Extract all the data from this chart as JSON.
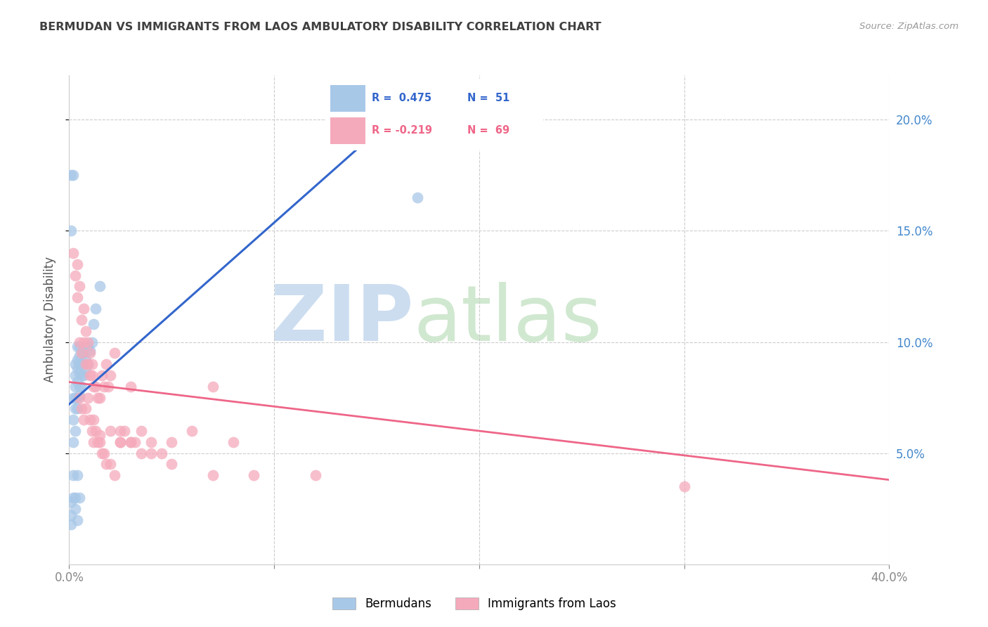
{
  "title": "BERMUDAN VS IMMIGRANTS FROM LAOS AMBULATORY DISABILITY CORRELATION CHART",
  "source": "Source: ZipAtlas.com",
  "ylabel": "Ambulatory Disability",
  "xlim": [
    0.0,
    0.4
  ],
  "ylim": [
    0.0,
    0.22
  ],
  "blue_R": 0.475,
  "blue_N": 51,
  "pink_R": -0.219,
  "pink_N": 69,
  "legend_label_blue": "Bermudans",
  "legend_label_pink": "Immigrants from Laos",
  "blue_scatter_x": [
    0.001,
    0.001,
    0.001,
    0.002,
    0.002,
    0.002,
    0.002,
    0.002,
    0.003,
    0.003,
    0.003,
    0.003,
    0.003,
    0.003,
    0.004,
    0.004,
    0.004,
    0.004,
    0.004,
    0.004,
    0.005,
    0.005,
    0.005,
    0.005,
    0.005,
    0.005,
    0.006,
    0.006,
    0.006,
    0.006,
    0.007,
    0.007,
    0.007,
    0.008,
    0.008,
    0.009,
    0.009,
    0.01,
    0.011,
    0.012,
    0.013,
    0.015,
    0.001,
    0.001,
    0.002,
    0.003,
    0.004,
    0.005,
    0.003,
    0.004,
    0.17
  ],
  "blue_scatter_y": [
    0.018,
    0.022,
    0.028,
    0.03,
    0.04,
    0.055,
    0.065,
    0.075,
    0.06,
    0.07,
    0.075,
    0.08,
    0.085,
    0.09,
    0.07,
    0.075,
    0.082,
    0.088,
    0.092,
    0.098,
    0.076,
    0.08,
    0.086,
    0.09,
    0.094,
    0.098,
    0.08,
    0.085,
    0.09,
    0.095,
    0.085,
    0.09,
    0.095,
    0.088,
    0.092,
    0.09,
    0.098,
    0.096,
    0.1,
    0.108,
    0.115,
    0.125,
    0.15,
    0.175,
    0.175,
    0.03,
    0.04,
    0.03,
    0.025,
    0.02,
    0.165
  ],
  "pink_scatter_x": [
    0.002,
    0.003,
    0.004,
    0.004,
    0.005,
    0.005,
    0.006,
    0.006,
    0.007,
    0.007,
    0.008,
    0.008,
    0.009,
    0.009,
    0.01,
    0.01,
    0.011,
    0.011,
    0.012,
    0.013,
    0.014,
    0.015,
    0.016,
    0.017,
    0.018,
    0.019,
    0.02,
    0.022,
    0.025,
    0.027,
    0.03,
    0.032,
    0.035,
    0.04,
    0.045,
    0.05,
    0.06,
    0.07,
    0.08,
    0.005,
    0.006,
    0.007,
    0.008,
    0.009,
    0.01,
    0.011,
    0.012,
    0.013,
    0.014,
    0.015,
    0.016,
    0.017,
    0.018,
    0.02,
    0.022,
    0.025,
    0.03,
    0.012,
    0.015,
    0.02,
    0.025,
    0.03,
    0.035,
    0.04,
    0.05,
    0.07,
    0.09,
    0.12,
    0.3
  ],
  "pink_scatter_y": [
    0.14,
    0.13,
    0.12,
    0.135,
    0.125,
    0.1,
    0.095,
    0.11,
    0.1,
    0.115,
    0.09,
    0.105,
    0.09,
    0.1,
    0.085,
    0.095,
    0.085,
    0.09,
    0.08,
    0.08,
    0.075,
    0.075,
    0.085,
    0.08,
    0.09,
    0.08,
    0.085,
    0.095,
    0.06,
    0.06,
    0.08,
    0.055,
    0.06,
    0.055,
    0.05,
    0.055,
    0.06,
    0.08,
    0.055,
    0.075,
    0.07,
    0.065,
    0.07,
    0.075,
    0.065,
    0.06,
    0.055,
    0.06,
    0.055,
    0.055,
    0.05,
    0.05,
    0.045,
    0.045,
    0.04,
    0.055,
    0.055,
    0.065,
    0.058,
    0.06,
    0.055,
    0.055,
    0.05,
    0.05,
    0.045,
    0.04,
    0.04,
    0.04,
    0.035
  ],
  "blue_line_x": [
    0.0,
    0.175
  ],
  "blue_line_y": [
    0.072,
    0.215
  ],
  "pink_line_x": [
    0.0,
    0.4
  ],
  "pink_line_y": [
    0.082,
    0.038
  ],
  "blue_color": "#A8C8E8",
  "pink_color": "#F5AABB",
  "blue_line_color": "#3366CC",
  "pink_line_color": "#EE6688",
  "title_color": "#404040",
  "source_color": "#999999",
  "right_axis_color": "#4488CC",
  "watermark_zip_color": "#CCDDF0",
  "watermark_atlas_color": "#D0E8D0",
  "grid_color": "#CCCCCC",
  "background_color": "#FFFFFF"
}
